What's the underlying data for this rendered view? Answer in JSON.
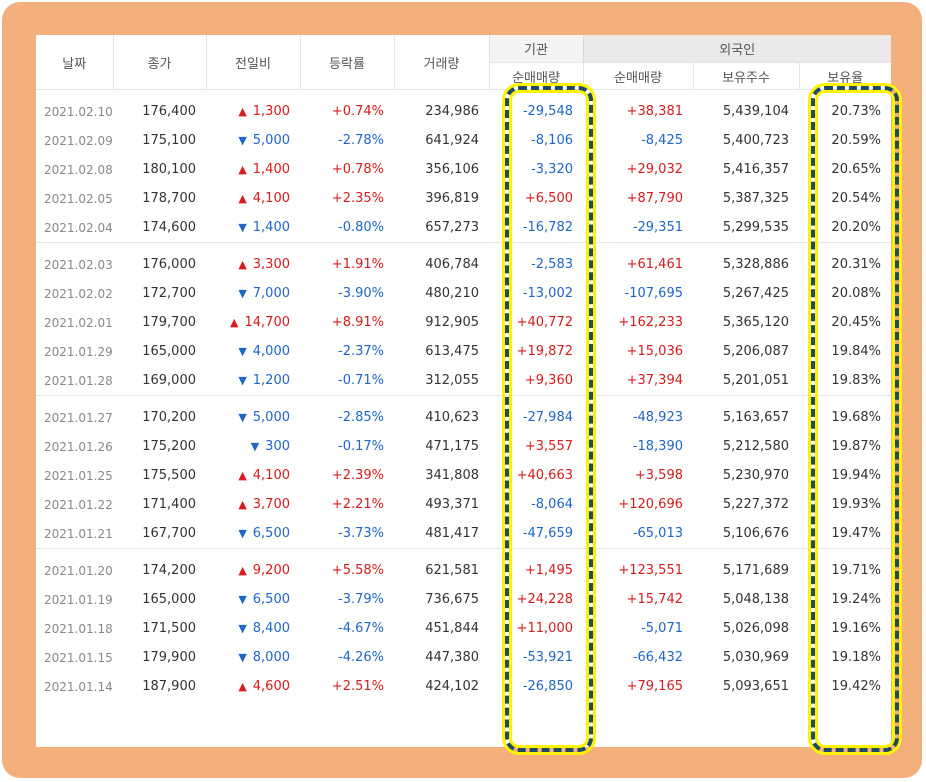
{
  "headers": {
    "date": "날짜",
    "close": "종가",
    "change": "전일비",
    "rate": "등락률",
    "volume": "거래량",
    "institution": "기관",
    "foreign": "외국인",
    "inst_net": "순매매량",
    "foreign_net": "순매매량",
    "foreign_shares": "보유주수",
    "foreign_ratio": "보유율"
  },
  "colors": {
    "up": "#d81b1b",
    "down": "#1e66c8",
    "frame": "#f3b07d",
    "highlight_border": "#1f4a63",
    "highlight_glow": "#fff200"
  },
  "groups": [
    {
      "rows": [
        {
          "date": "2021.02.10",
          "close": "176,400",
          "dir": "up",
          "change": "1,300",
          "rate": "+0.74%",
          "volume": "234,986",
          "inst": "-29,548",
          "fnet": "+38,381",
          "fshares": "5,439,104",
          "fratio": "20.73%"
        },
        {
          "date": "2021.02.09",
          "close": "175,100",
          "dir": "down",
          "change": "5,000",
          "rate": "-2.78%",
          "volume": "641,924",
          "inst": "-8,106",
          "fnet": "-8,425",
          "fshares": "5,400,723",
          "fratio": "20.59%"
        },
        {
          "date": "2021.02.08",
          "close": "180,100",
          "dir": "up",
          "change": "1,400",
          "rate": "+0.78%",
          "volume": "356,106",
          "inst": "-3,320",
          "fnet": "+29,032",
          "fshares": "5,416,357",
          "fratio": "20.65%"
        },
        {
          "date": "2021.02.05",
          "close": "178,700",
          "dir": "up",
          "change": "4,100",
          "rate": "+2.35%",
          "volume": "396,819",
          "inst": "+6,500",
          "fnet": "+87,790",
          "fshares": "5,387,325",
          "fratio": "20.54%"
        },
        {
          "date": "2021.02.04",
          "close": "174,600",
          "dir": "down",
          "change": "1,400",
          "rate": "-0.80%",
          "volume": "657,273",
          "inst": "-16,782",
          "fnet": "-29,351",
          "fshares": "5,299,535",
          "fratio": "20.20%"
        }
      ]
    },
    {
      "rows": [
        {
          "date": "2021.02.03",
          "close": "176,000",
          "dir": "up",
          "change": "3,300",
          "rate": "+1.91%",
          "volume": "406,784",
          "inst": "-2,583",
          "fnet": "+61,461",
          "fshares": "5,328,886",
          "fratio": "20.31%"
        },
        {
          "date": "2021.02.02",
          "close": "172,700",
          "dir": "down",
          "change": "7,000",
          "rate": "-3.90%",
          "volume": "480,210",
          "inst": "-13,002",
          "fnet": "-107,695",
          "fshares": "5,267,425",
          "fratio": "20.08%"
        },
        {
          "date": "2021.02.01",
          "close": "179,700",
          "dir": "up",
          "change": "14,700",
          "rate": "+8.91%",
          "volume": "912,905",
          "inst": "+40,772",
          "fnet": "+162,233",
          "fshares": "5,365,120",
          "fratio": "20.45%"
        },
        {
          "date": "2021.01.29",
          "close": "165,000",
          "dir": "down",
          "change": "4,000",
          "rate": "-2.37%",
          "volume": "613,475",
          "inst": "+19,872",
          "fnet": "+15,036",
          "fshares": "5,206,087",
          "fratio": "19.84%"
        },
        {
          "date": "2021.01.28",
          "close": "169,000",
          "dir": "down",
          "change": "1,200",
          "rate": "-0.71%",
          "volume": "312,055",
          "inst": "+9,360",
          "fnet": "+37,394",
          "fshares": "5,201,051",
          "fratio": "19.83%"
        }
      ]
    },
    {
      "rows": [
        {
          "date": "2021.01.27",
          "close": "170,200",
          "dir": "down",
          "change": "5,000",
          "rate": "-2.85%",
          "volume": "410,623",
          "inst": "-27,984",
          "fnet": "-48,923",
          "fshares": "5,163,657",
          "fratio": "19.68%"
        },
        {
          "date": "2021.01.26",
          "close": "175,200",
          "dir": "down",
          "change": "300",
          "rate": "-0.17%",
          "volume": "471,175",
          "inst": "+3,557",
          "fnet": "-18,390",
          "fshares": "5,212,580",
          "fratio": "19.87%"
        },
        {
          "date": "2021.01.25",
          "close": "175,500",
          "dir": "up",
          "change": "4,100",
          "rate": "+2.39%",
          "volume": "341,808",
          "inst": "+40,663",
          "fnet": "+3,598",
          "fshares": "5,230,970",
          "fratio": "19.94%"
        },
        {
          "date": "2021.01.22",
          "close": "171,400",
          "dir": "up",
          "change": "3,700",
          "rate": "+2.21%",
          "volume": "493,371",
          "inst": "-8,064",
          "fnet": "+120,696",
          "fshares": "5,227,372",
          "fratio": "19.93%"
        },
        {
          "date": "2021.01.21",
          "close": "167,700",
          "dir": "down",
          "change": "6,500",
          "rate": "-3.73%",
          "volume": "481,417",
          "inst": "-47,659",
          "fnet": "-65,013",
          "fshares": "5,106,676",
          "fratio": "19.47%"
        }
      ]
    },
    {
      "rows": [
        {
          "date": "2021.01.20",
          "close": "174,200",
          "dir": "up",
          "change": "9,200",
          "rate": "+5.58%",
          "volume": "621,581",
          "inst": "+1,495",
          "fnet": "+123,551",
          "fshares": "5,171,689",
          "fratio": "19.71%"
        },
        {
          "date": "2021.01.19",
          "close": "165,000",
          "dir": "down",
          "change": "6,500",
          "rate": "-3.79%",
          "volume": "736,675",
          "inst": "+24,228",
          "fnet": "+15,742",
          "fshares": "5,048,138",
          "fratio": "19.24%"
        },
        {
          "date": "2021.01.18",
          "close": "171,500",
          "dir": "down",
          "change": "8,400",
          "rate": "-4.67%",
          "volume": "451,844",
          "inst": "+11,000",
          "fnet": "-5,071",
          "fshares": "5,026,098",
          "fratio": "19.16%"
        },
        {
          "date": "2021.01.15",
          "close": "179,900",
          "dir": "down",
          "change": "8,000",
          "rate": "-4.26%",
          "volume": "447,380",
          "inst": "-53,921",
          "fnet": "-66,432",
          "fshares": "5,030,969",
          "fratio": "19.18%"
        },
        {
          "date": "2021.01.14",
          "close": "187,900",
          "dir": "up",
          "change": "4,600",
          "rate": "+2.51%",
          "volume": "424,102",
          "inst": "-26,850",
          "fnet": "+79,165",
          "fshares": "5,093,651",
          "fratio": "19.42%"
        }
      ]
    }
  ]
}
